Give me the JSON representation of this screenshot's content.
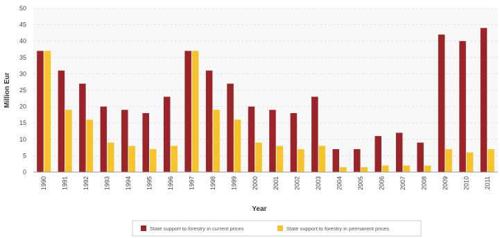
{
  "chart_data": {
    "type": "bar",
    "xlabel": "Year",
    "ylabel": "Million Eur",
    "ylim": [
      0,
      50
    ],
    "yticks": [
      0,
      5,
      10,
      15,
      20,
      25,
      30,
      35,
      40,
      45,
      50
    ],
    "grid": "horizontal dashed",
    "legend_position": "bottom-center",
    "categories": [
      "1990",
      "1991",
      "1992",
      "1993",
      "1994",
      "1995",
      "1996",
      "1997",
      "1998",
      "1999",
      "2000",
      "2001",
      "2002",
      "2003",
      "2004",
      "2005",
      "2006",
      "2007",
      "2008",
      "2009",
      "2010",
      "2011"
    ],
    "series": [
      {
        "name": "State support to forestry in current prices",
        "color": "#9b2428",
        "values": [
          37,
          31,
          27,
          20,
          19,
          18,
          23,
          37,
          31,
          27,
          20,
          19,
          18,
          23,
          7,
          7,
          11,
          12,
          9,
          42,
          40,
          44
        ]
      },
      {
        "name": "State support to forestry in permanent prices",
        "color": "#f6c32a",
        "values": [
          37,
          19,
          16,
          9,
          8,
          7,
          8,
          37,
          19,
          16,
          9,
          8,
          7,
          8,
          1.5,
          1.5,
          2,
          2,
          2,
          7,
          6,
          7
        ]
      }
    ]
  }
}
